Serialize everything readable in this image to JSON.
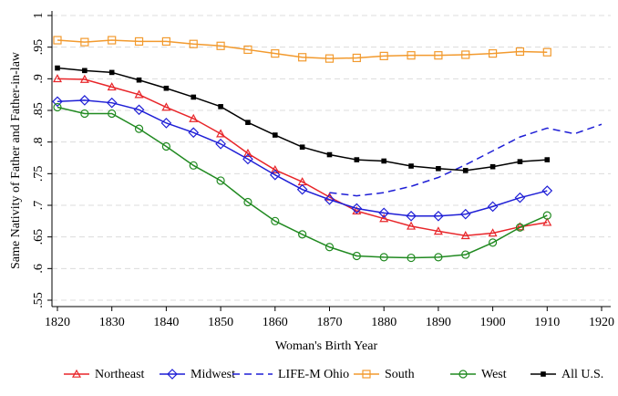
{
  "chart_data": {
    "type": "line",
    "x_label": "Woman's Birth Year",
    "y_label": "Same Nativity of Father and Father-in-law",
    "x": [
      1820,
      1825,
      1830,
      1835,
      1840,
      1845,
      1850,
      1855,
      1860,
      1865,
      1870,
      1875,
      1880,
      1885,
      1890,
      1895,
      1900,
      1905,
      1910,
      1915,
      1920
    ],
    "xlim": [
      1820,
      1920
    ],
    "xticks": [
      1820,
      1830,
      1840,
      1850,
      1860,
      1870,
      1880,
      1890,
      1900,
      1910,
      1920
    ],
    "ylim": [
      0.55,
      1
    ],
    "yticks": [
      {
        "value": 0.55,
        "label": ".55"
      },
      {
        "value": 0.6,
        "label": ".6"
      },
      {
        "value": 0.65,
        "label": ".65"
      },
      {
        "value": 0.7,
        "label": ".7"
      },
      {
        "value": 0.75,
        "label": ".75"
      },
      {
        "value": 0.8,
        "label": ".8"
      },
      {
        "value": 0.85,
        "label": ".85"
      },
      {
        "value": 0.9,
        "label": ".9"
      },
      {
        "value": 0.95,
        "label": ".95"
      },
      1
    ],
    "grid": true,
    "legend": "bottom",
    "series": [
      {
        "name": "Northeast",
        "color": "#e8262a",
        "marker": "triangle",
        "line_style": "solid",
        "values": [
          0.9,
          0.899,
          0.887,
          0.875,
          0.855,
          0.837,
          0.813,
          0.782,
          0.756,
          0.737,
          0.713,
          0.691,
          0.679,
          0.667,
          0.659,
          0.652,
          0.656,
          0.666,
          0.673,
          null,
          null
        ]
      },
      {
        "name": "Midwest",
        "color": "#1f1fd6",
        "marker": "diamond",
        "line_style": "solid",
        "values": [
          0.864,
          0.866,
          0.862,
          0.851,
          0.83,
          0.815,
          0.797,
          0.773,
          0.748,
          0.725,
          0.709,
          0.695,
          0.688,
          0.683,
          0.683,
          0.686,
          0.698,
          0.712,
          0.723,
          null,
          null
        ]
      },
      {
        "name": "LIFE-M Ohio",
        "color": "#1f1fd6",
        "marker": "none",
        "line_style": "dashed",
        "values": [
          null,
          null,
          null,
          null,
          null,
          null,
          null,
          null,
          null,
          null,
          0.72,
          0.715,
          0.72,
          0.73,
          0.744,
          0.764,
          0.786,
          0.808,
          0.822,
          0.813,
          0.828
        ]
      },
      {
        "name": "South",
        "color": "#f29a2e",
        "marker": "square",
        "line_style": "solid",
        "values": [
          0.961,
          0.958,
          0.961,
          0.959,
          0.959,
          0.955,
          0.952,
          0.946,
          0.94,
          0.934,
          0.932,
          0.933,
          0.936,
          0.937,
          0.937,
          0.938,
          0.94,
          0.943,
          0.942,
          null,
          null
        ]
      },
      {
        "name": "West",
        "color": "#218a21",
        "marker": "circle",
        "line_style": "solid",
        "values": [
          0.855,
          0.845,
          0.845,
          0.821,
          0.793,
          0.763,
          0.739,
          0.705,
          0.675,
          0.654,
          0.634,
          0.62,
          0.618,
          0.617,
          0.618,
          0.622,
          0.641,
          0.665,
          0.684,
          null,
          null
        ]
      },
      {
        "name": "All U.S.",
        "color": "#000000",
        "marker": "filled-square",
        "line_style": "solid",
        "values": [
          0.917,
          0.913,
          0.91,
          0.898,
          0.885,
          0.871,
          0.856,
          0.831,
          0.811,
          0.792,
          0.78,
          0.772,
          0.77,
          0.762,
          0.758,
          0.755,
          0.761,
          0.769,
          0.772,
          null,
          null
        ]
      }
    ]
  }
}
